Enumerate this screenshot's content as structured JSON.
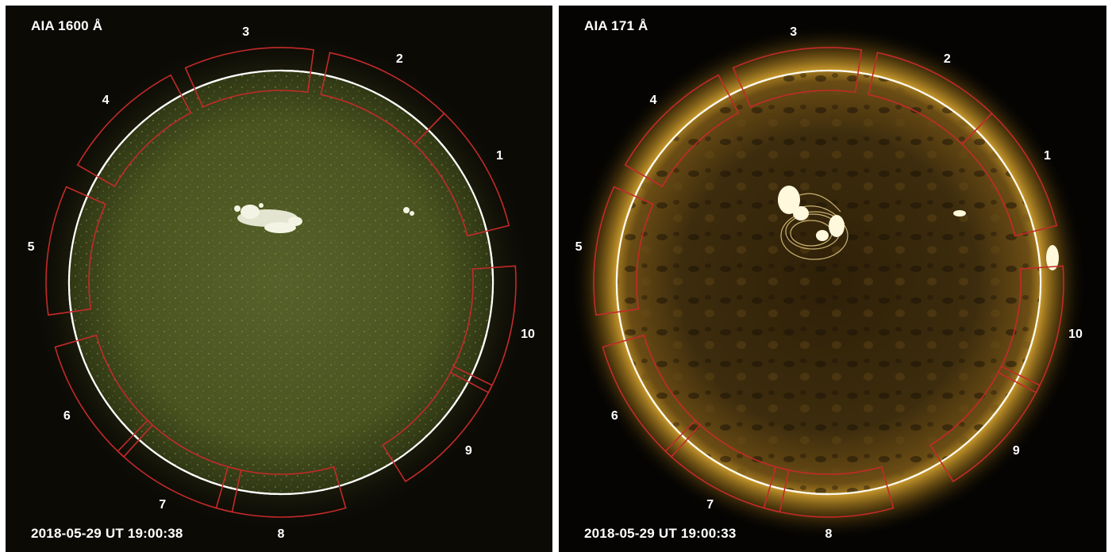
{
  "panels": [
    {
      "title": "AIA 1600 Å",
      "timestamp": "2018-05-29 UT 19:00:38",
      "colors": {
        "disk": "#4f5a22",
        "disk_edge": "#2e3512",
        "background": "#0b0a05",
        "limb": "#ffffff",
        "box": "#c42a2a"
      }
    },
    {
      "title": "AIA 171 Å",
      "timestamp": "2018-05-29 UT 19:00:33",
      "colors": {
        "disk": "#3b2b10",
        "disk_edge": "#6a4c14",
        "background": "#050402",
        "limb": "#fff6cc",
        "box": "#c42a2a"
      }
    }
  ],
  "regions": [
    "1",
    "2",
    "3",
    "4",
    "5",
    "6",
    "7",
    "8",
    "9",
    "10"
  ]
}
